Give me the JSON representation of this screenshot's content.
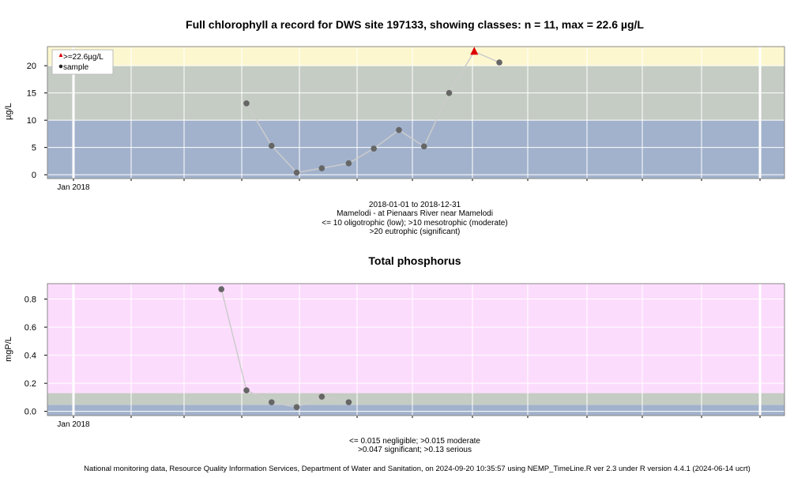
{
  "footer": "National monitoring data, Resource Quality Information Services, Department of Water and Sanitation, on 2024-09-20 10:35:57 using NEMP_TimeLine.R ver 2.3 under R version 4.4.1 (2024-06-14 ucrt)",
  "colors": {
    "eutrophic_band": "#fdf7cf",
    "mesotrophic_band": "#c5ccc3",
    "oligotrophic_band": "#a2b2cc",
    "phos_serious_band": "#fcdcfc",
    "phos_significant_band": "#c5ccc3",
    "phos_moderate_band": "#a2b2cc",
    "phos_negligible_band": "#a2b2cc",
    "gridline": "#ffffff",
    "line": "#cccccc",
    "point": "#666666",
    "max_marker": "#dd0000"
  },
  "chart_data": [
    {
      "type": "line",
      "title": "Full chlorophyll a record for DWS site 197133, showing classes: n = 11, max = 22.6 µg/L",
      "xlabel": "",
      "ylabel": "µg/L",
      "x_tick_labels": [
        "Jan 2018"
      ],
      "y_ticks": [
        0,
        5,
        10,
        15,
        20
      ],
      "ylim": [
        -0.7,
        23.5
      ],
      "grid": true,
      "legend_position": "top-left",
      "legend": [
        "  >=22.6µg/L",
        "  sample"
      ],
      "bands": [
        {
          "from": -0.7,
          "to": 10,
          "color_key": "oligotrophic_band"
        },
        {
          "from": 10,
          "to": 20,
          "color_key": "mesotrophic_band"
        },
        {
          "from": 20,
          "to": 23.5,
          "color_key": "eutrophic_band"
        }
      ],
      "series": [
        {
          "x": [
            "2018-03-06",
            "2018-03-20",
            "2018-04-03",
            "2018-04-17",
            "2018-05-02",
            "2018-05-16",
            "2018-05-30",
            "2018-06-13",
            "2018-06-27",
            "2018-07-11",
            "2018-07-25"
          ],
          "values": [
            13.1,
            5.3,
            0.4,
            1.2,
            2.1,
            4.8,
            8.2,
            5.2,
            15.0,
            22.6,
            20.6
          ]
        }
      ],
      "max": {
        "x": "2018-07-11",
        "value": 22.6
      },
      "caption": [
        "2018-01-01 to 2018-12-31",
        "Mamelodi - at Pienaars River near Mamelodi",
        "<= 10 oligotrophic (low); >10 mesotrophic (moderate)",
        ">20 eutrophic (significant)"
      ]
    },
    {
      "type": "line",
      "title": "Total phosphorus",
      "xlabel": "",
      "ylabel": "mgP/L",
      "x_tick_labels": [
        "Jan 2018"
      ],
      "y_ticks": [
        0.0,
        0.2,
        0.4,
        0.6,
        0.8
      ],
      "y_tick_labels": [
        "0.0",
        "0.2",
        "0.4",
        "0.6",
        "0.8"
      ],
      "ylim": [
        -0.03,
        0.91
      ],
      "grid": true,
      "bands": [
        {
          "from": -0.03,
          "to": 0.015,
          "color_key": "phos_negligible_band"
        },
        {
          "from": 0.015,
          "to": 0.047,
          "color_key": "phos_moderate_band"
        },
        {
          "from": 0.047,
          "to": 0.13,
          "color_key": "phos_significant_band"
        },
        {
          "from": 0.13,
          "to": 0.91,
          "color_key": "phos_serious_band"
        }
      ],
      "series": [
        {
          "x": [
            "2018-02-20",
            "2018-03-06",
            "2018-03-20",
            "2018-04-03",
            "2018-04-17",
            "2018-05-02"
          ],
          "values": [
            0.87,
            0.15,
            0.065,
            0.03,
            0.105,
            0.065
          ]
        }
      ],
      "caption": [
        "<= 0.015 negligible; >0.015 moderate",
        ">0.047 significant; >0.13 serious"
      ]
    }
  ]
}
